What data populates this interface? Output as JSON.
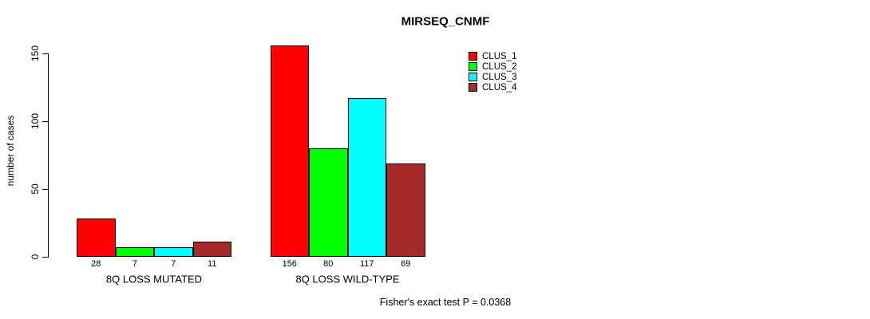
{
  "chart_data": {
    "type": "bar",
    "title": "MIRSEQ_CNMF",
    "xlabel": "",
    "ylabel": "number of cases",
    "categories": [
      "8Q LOSS MUTATED",
      "8Q LOSS WILD-TYPE"
    ],
    "series": [
      {
        "name": "CLUS_1",
        "color": "#FF0000",
        "values": [
          28,
          156
        ]
      },
      {
        "name": "CLUS_2",
        "color": "#00FF00",
        "values": [
          7,
          80
        ]
      },
      {
        "name": "CLUS_3",
        "color": "#00FFFF",
        "values": [
          7,
          117
        ]
      },
      {
        "name": "CLUS_4",
        "color": "#A52A2A",
        "values": [
          11,
          69
        ]
      }
    ],
    "yticks": [
      0,
      50,
      100,
      150
    ],
    "ylim": [
      0,
      160
    ],
    "grid": false,
    "legend_position": "top-right",
    "bar_value_labels": true
  },
  "footnote": "Fisher's exact test P = 0.0368"
}
